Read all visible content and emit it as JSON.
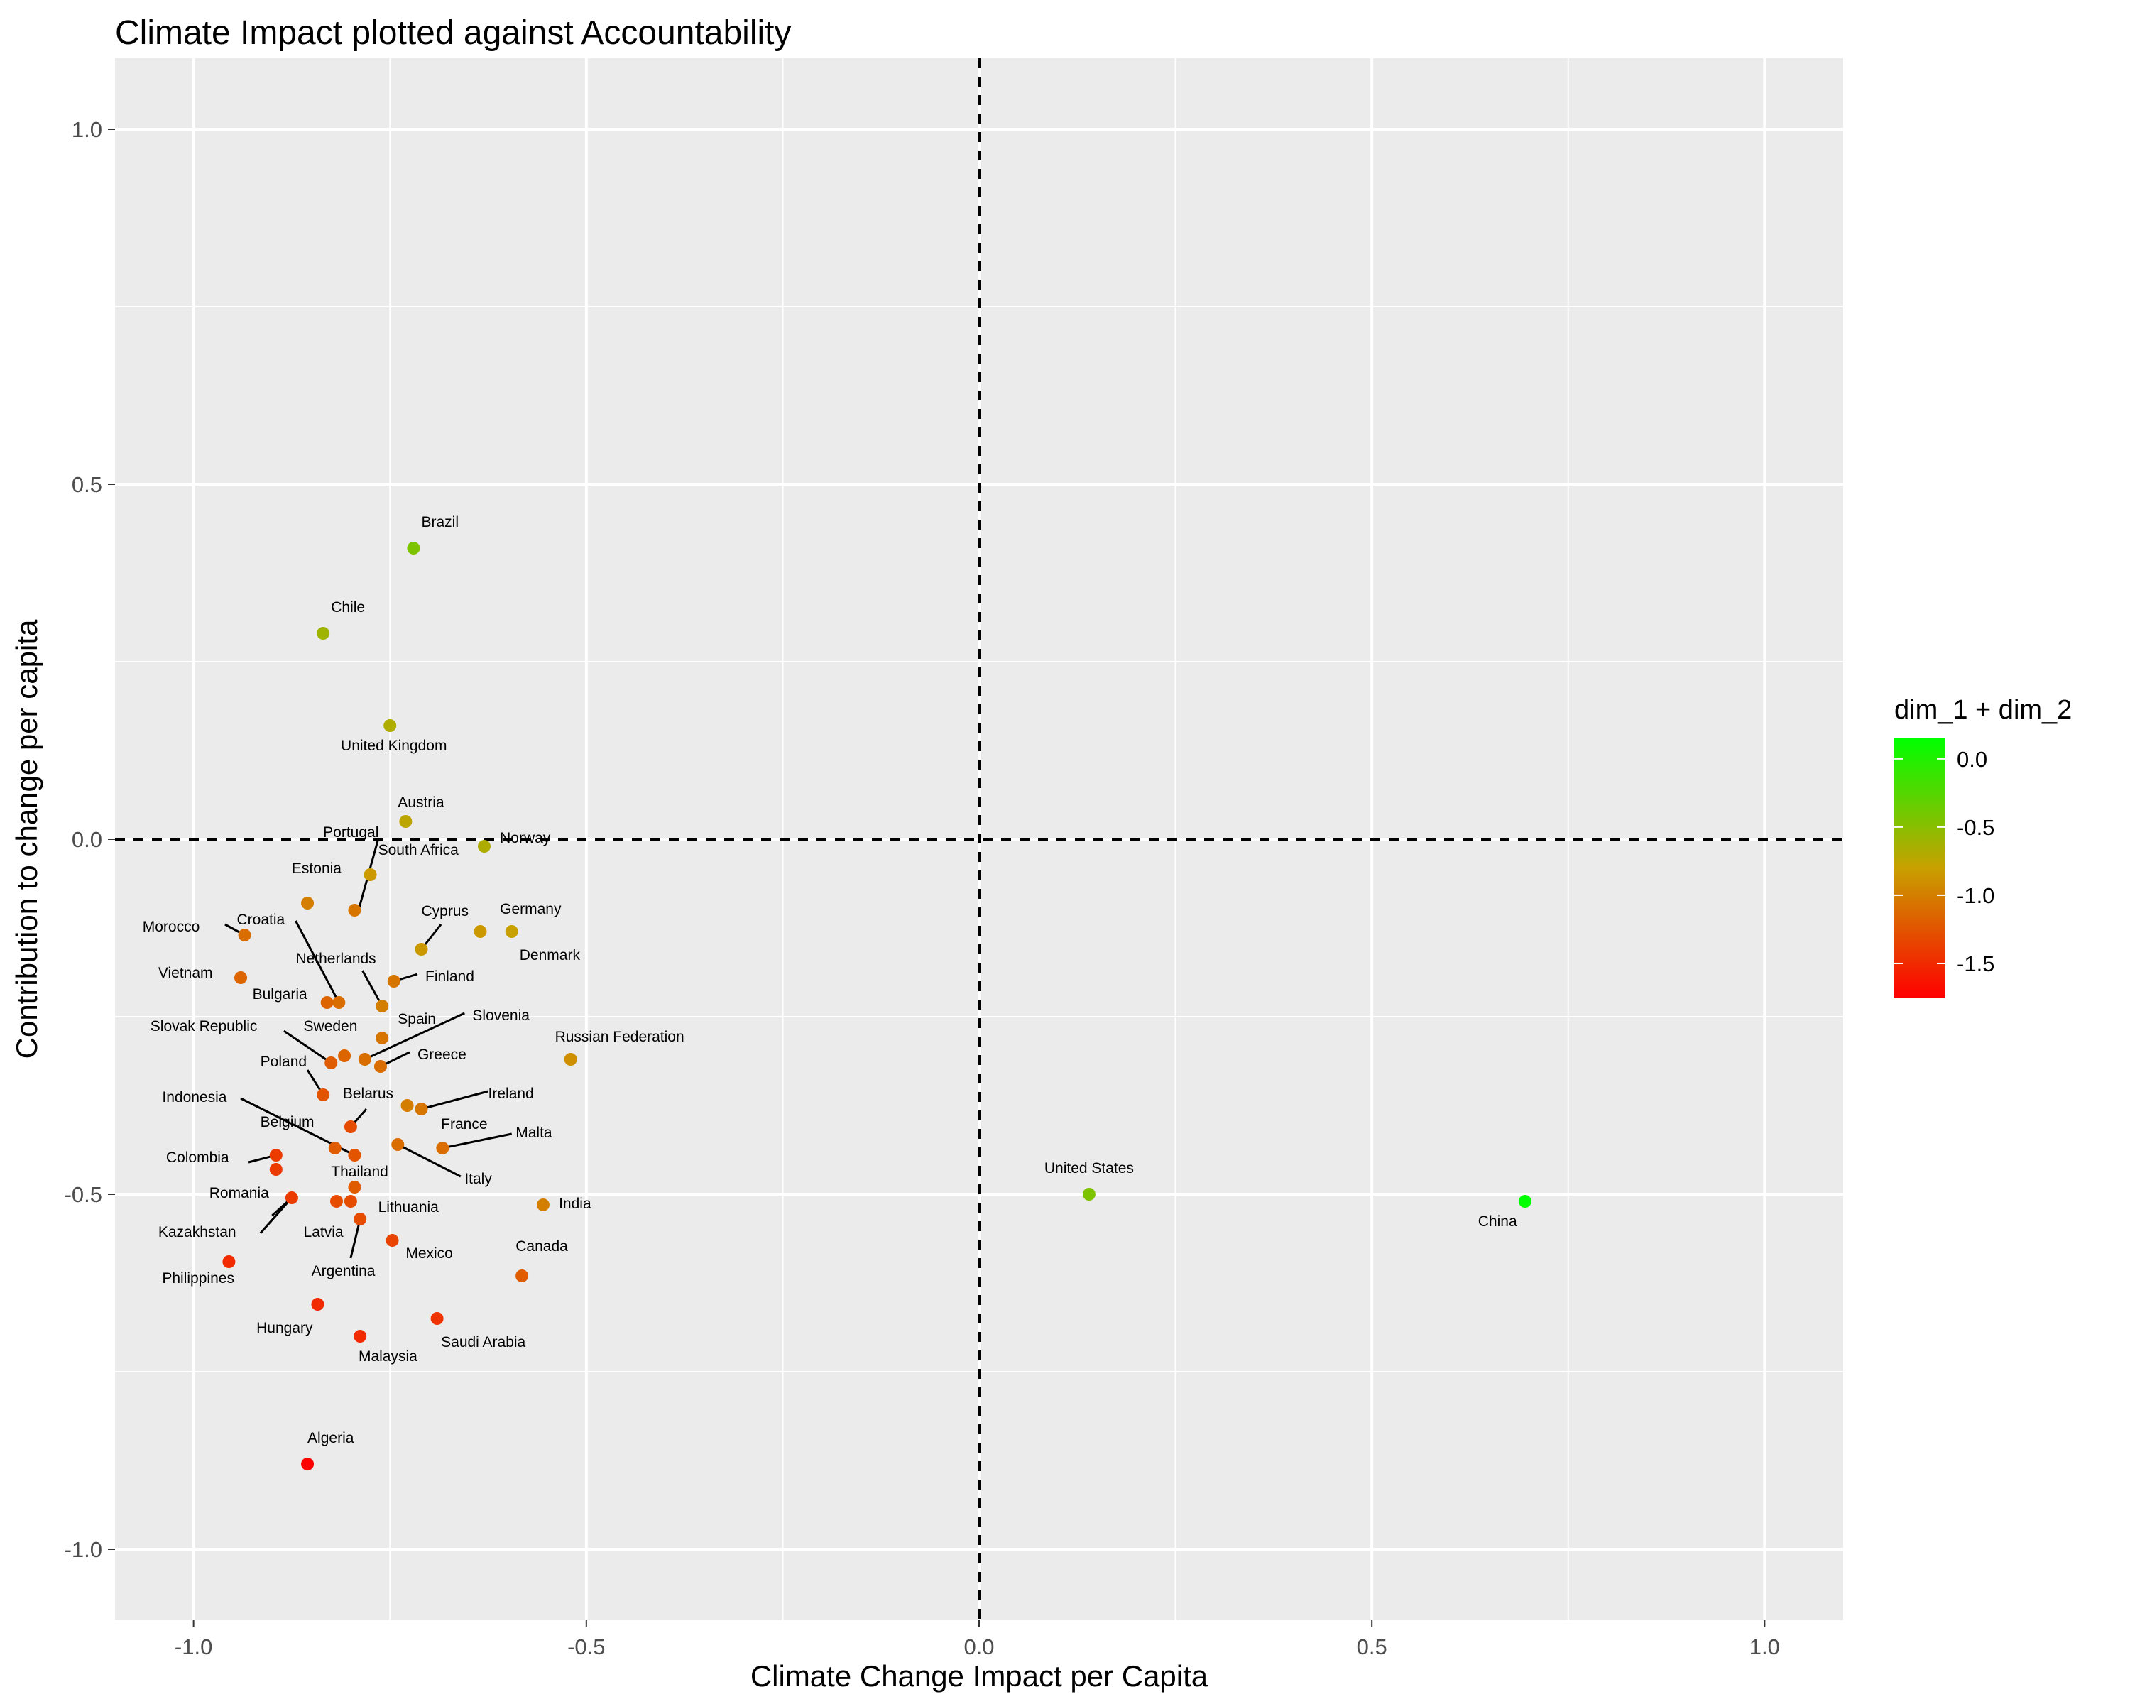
{
  "chart_data": {
    "type": "scatter",
    "title": "Climate Impact plotted against Accountability",
    "xlabel": "Climate Change Impact per Capita",
    "ylabel": "Contribution to change per capita",
    "xlim": [
      -1.1,
      1.1
    ],
    "ylim": [
      -1.1,
      1.1
    ],
    "x_ticks": [
      -1.0,
      -0.5,
      0.0,
      0.5,
      1.0
    ],
    "x_tick_labels": [
      "-1.0",
      "-0.5",
      "0.0",
      "0.5",
      "1.0"
    ],
    "y_ticks": [
      -1.0,
      -0.5,
      0.0,
      0.5,
      1.0
    ],
    "y_tick_labels": [
      "-1.0",
      "-0.5",
      "0.0",
      "0.5",
      "1.0"
    ],
    "grid": true,
    "reference_lines": {
      "x": 0,
      "y": 0,
      "style": "dashed"
    },
    "legend": {
      "title": "dim_1 + dim_2",
      "placement": "right",
      "type": "colorbar",
      "range": [
        -1.75,
        0.15
      ],
      "ticks": [
        0.0,
        -0.5,
        -1.0,
        -1.5
      ],
      "tick_labels": [
        "0.0",
        "-0.5",
        "-1.0",
        "-1.5"
      ],
      "low_color": "#ff0000",
      "high_color": "#00ff00"
    },
    "points": [
      {
        "label": "Brazil",
        "x": -0.72,
        "y": 0.41,
        "c": -0.45
      },
      {
        "label": "Chile",
        "x": -0.835,
        "y": 0.29,
        "c": -0.6
      },
      {
        "label": "United Kingdom",
        "x": -0.75,
        "y": 0.16,
        "c": -0.68
      },
      {
        "label": "Austria",
        "x": -0.73,
        "y": 0.025,
        "c": -0.75
      },
      {
        "label": "Norway",
        "x": -0.63,
        "y": -0.01,
        "c": -0.68
      },
      {
        "label": "South Africa",
        "x": -0.775,
        "y": -0.05,
        "c": -0.85
      },
      {
        "label": "Portugal",
        "x": -0.795,
        "y": -0.1,
        "c": -1.05
      },
      {
        "label": "Estonia",
        "x": -0.855,
        "y": -0.09,
        "c": -1.0
      },
      {
        "label": "Morocco",
        "x": -0.935,
        "y": -0.135,
        "c": -1.1
      },
      {
        "label": "Germany",
        "x": -0.635,
        "y": -0.13,
        "c": -0.85
      },
      {
        "label": "Denmark",
        "x": -0.595,
        "y": -0.13,
        "c": -0.8
      },
      {
        "label": "Cyprus",
        "x": -0.71,
        "y": -0.155,
        "c": -0.85
      },
      {
        "label": "Finland",
        "x": -0.745,
        "y": -0.2,
        "c": -1.05
      },
      {
        "label": "Vietnam",
        "x": -0.94,
        "y": -0.195,
        "c": -1.15
      },
      {
        "label": "Croatia",
        "x": -0.815,
        "y": -0.23,
        "c": -1.1
      },
      {
        "label": "Bulgaria",
        "x": -0.83,
        "y": -0.23,
        "c": -1.15
      },
      {
        "label": "Netherlands",
        "x": -0.76,
        "y": -0.235,
        "c": -1.0
      },
      {
        "label": "Spain",
        "x": -0.76,
        "y": -0.28,
        "c": -1.05
      },
      {
        "label": "Sweden",
        "x": -0.808,
        "y": -0.305,
        "c": -1.15
      },
      {
        "label": "Slovenia",
        "x": -0.782,
        "y": -0.31,
        "c": -1.1
      },
      {
        "label": "Greece",
        "x": -0.762,
        "y": -0.32,
        "c": -1.1
      },
      {
        "label": "Slovak Republic",
        "x": -0.825,
        "y": -0.315,
        "c": -1.2
      },
      {
        "label": "Russian Federation",
        "x": -0.52,
        "y": -0.31,
        "c": -0.9
      },
      {
        "label": "Poland",
        "x": -0.835,
        "y": -0.36,
        "c": -1.25
      },
      {
        "label": "Ireland",
        "x": -0.71,
        "y": -0.38,
        "c": -1.05
      },
      {
        "label": "Belarus",
        "x": -0.728,
        "y": -0.375,
        "c": -1.0
      },
      {
        "label": "Indonesia",
        "x": -0.8,
        "y": -0.405,
        "c": -1.3
      },
      {
        "label": "France",
        "x": -0.74,
        "y": -0.43,
        "c": -1.1
      },
      {
        "label": "Malta",
        "x": -0.683,
        "y": -0.435,
        "c": -1.1
      },
      {
        "label": "Belgium",
        "x": -0.82,
        "y": -0.435,
        "c": -1.2
      },
      {
        "label": "Italy",
        "x": -0.795,
        "y": -0.445,
        "c": -1.25
      },
      {
        "label": "Colombia",
        "x": -0.895,
        "y": -0.445,
        "c": -1.4
      },
      {
        "label": "Colombia-2",
        "x": -0.895,
        "y": -0.465,
        "c": -1.4
      },
      {
        "label": "Thailand",
        "x": -0.795,
        "y": -0.49,
        "c": -1.2
      },
      {
        "label": "Romania",
        "x": -0.875,
        "y": -0.505,
        "c": -1.4
      },
      {
        "label": "Latvia",
        "x": -0.818,
        "y": -0.51,
        "c": -1.3
      },
      {
        "label": "Lithuania",
        "x": -0.8,
        "y": -0.51,
        "c": -1.3
      },
      {
        "label": "India",
        "x": -0.555,
        "y": -0.515,
        "c": -1.0
      },
      {
        "label": "Argentina",
        "x": -0.788,
        "y": -0.535,
        "c": -1.3
      },
      {
        "label": "Mexico",
        "x": -0.747,
        "y": -0.565,
        "c": -1.35
      },
      {
        "label": "Kazakhstan-pt",
        "x": -0.955,
        "y": -0.595,
        "c": -1.5
      },
      {
        "label": "Canada",
        "x": -0.582,
        "y": -0.615,
        "c": -1.2
      },
      {
        "label": "Hungary",
        "x": -0.842,
        "y": -0.655,
        "c": -1.5
      },
      {
        "label": "Saudi Arabia",
        "x": -0.69,
        "y": -0.675,
        "c": -1.45
      },
      {
        "label": "Malaysia",
        "x": -0.788,
        "y": -0.7,
        "c": -1.5
      },
      {
        "label": "Algeria",
        "x": -0.855,
        "y": -0.88,
        "c": -1.75
      },
      {
        "label": "United States",
        "x": 0.14,
        "y": -0.5,
        "c": -0.45
      },
      {
        "label": "China",
        "x": 0.695,
        "y": -0.51,
        "c": 0.15
      }
    ],
    "text_labels": [
      {
        "text": "Brazil",
        "x": -0.71,
        "y": 0.44,
        "anchor": "start"
      },
      {
        "text": "Chile",
        "x": -0.825,
        "y": 0.32,
        "anchor": "start"
      },
      {
        "text": "United Kingdom",
        "x": -0.745,
        "y": 0.125,
        "anchor": "middle"
      },
      {
        "text": "Austria",
        "x": -0.74,
        "y": 0.045,
        "anchor": "start"
      },
      {
        "text": "Norway",
        "x": -0.61,
        "y": -0.005,
        "anchor": "start"
      },
      {
        "text": "Portugal",
        "x": -0.835,
        "y": 0.003,
        "anchor": "start"
      },
      {
        "text": "South Africa",
        "x": -0.765,
        "y": -0.022,
        "anchor": "start"
      },
      {
        "text": "Estonia",
        "x": -0.875,
        "y": -0.048,
        "anchor": "start"
      },
      {
        "text": "Morocco",
        "x": -1.065,
        "y": -0.13,
        "anchor": "start"
      },
      {
        "text": "Croatia",
        "x": -0.945,
        "y": -0.12,
        "anchor": "start"
      },
      {
        "text": "Cyprus",
        "x": -0.71,
        "y": -0.108,
        "anchor": "start"
      },
      {
        "text": "Germany",
        "x": -0.61,
        "y": -0.105,
        "anchor": "start"
      },
      {
        "text": "Denmark",
        "x": -0.585,
        "y": -0.17,
        "anchor": "start"
      },
      {
        "text": "Netherlands",
        "x": -0.87,
        "y": -0.175,
        "anchor": "start"
      },
      {
        "text": "Finland",
        "x": -0.705,
        "y": -0.2,
        "anchor": "start"
      },
      {
        "text": "Vietnam",
        "x": -1.045,
        "y": -0.195,
        "anchor": "start"
      },
      {
        "text": "Bulgaria",
        "x": -0.925,
        "y": -0.225,
        "anchor": "start"
      },
      {
        "text": "Slovenia",
        "x": -0.645,
        "y": -0.255,
        "anchor": "start"
      },
      {
        "text": "Spain",
        "x": -0.74,
        "y": -0.26,
        "anchor": "start"
      },
      {
        "text": "Slovak Republic",
        "x": -1.055,
        "y": -0.27,
        "anchor": "start"
      },
      {
        "text": "Sweden",
        "x": -0.86,
        "y": -0.27,
        "anchor": "start"
      },
      {
        "text": "Russian Federation",
        "x": -0.54,
        "y": -0.285,
        "anchor": "start"
      },
      {
        "text": "Greece",
        "x": -0.715,
        "y": -0.31,
        "anchor": "start"
      },
      {
        "text": "Poland",
        "x": -0.915,
        "y": -0.32,
        "anchor": "start"
      },
      {
        "text": "Belarus",
        "x": -0.81,
        "y": -0.365,
        "anchor": "start"
      },
      {
        "text": "Ireland",
        "x": -0.625,
        "y": -0.365,
        "anchor": "start"
      },
      {
        "text": "Indonesia",
        "x": -1.04,
        "y": -0.37,
        "anchor": "start"
      },
      {
        "text": "Belgium",
        "x": -0.915,
        "y": -0.405,
        "anchor": "start"
      },
      {
        "text": "France",
        "x": -0.685,
        "y": -0.408,
        "anchor": "start"
      },
      {
        "text": "Malta",
        "x": -0.59,
        "y": -0.42,
        "anchor": "start"
      },
      {
        "text": "Colombia",
        "x": -1.035,
        "y": -0.455,
        "anchor": "start"
      },
      {
        "text": "Thailand",
        "x": -0.825,
        "y": -0.475,
        "anchor": "start"
      },
      {
        "text": "Italy",
        "x": -0.655,
        "y": -0.485,
        "anchor": "start"
      },
      {
        "text": "Romania",
        "x": -0.98,
        "y": -0.505,
        "anchor": "start"
      },
      {
        "text": "India",
        "x": -0.535,
        "y": -0.52,
        "anchor": "start"
      },
      {
        "text": "Lithuania",
        "x": -0.765,
        "y": -0.525,
        "anchor": "start"
      },
      {
        "text": "Kazakhstan",
        "x": -1.045,
        "y": -0.56,
        "anchor": "start"
      },
      {
        "text": "Latvia",
        "x": -0.86,
        "y": -0.56,
        "anchor": "start"
      },
      {
        "text": "Mexico",
        "x": -0.73,
        "y": -0.59,
        "anchor": "start"
      },
      {
        "text": "Canada",
        "x": -0.59,
        "y": -0.58,
        "anchor": "start"
      },
      {
        "text": "Argentina",
        "x": -0.85,
        "y": -0.615,
        "anchor": "start"
      },
      {
        "text": "Philippines",
        "x": -1.04,
        "y": -0.625,
        "anchor": "start"
      },
      {
        "text": "Hungary",
        "x": -0.92,
        "y": -0.695,
        "anchor": "start"
      },
      {
        "text": "Saudi Arabia",
        "x": -0.685,
        "y": -0.715,
        "anchor": "start"
      },
      {
        "text": "Malaysia",
        "x": -0.79,
        "y": -0.735,
        "anchor": "start"
      },
      {
        "text": "Algeria",
        "x": -0.855,
        "y": -0.85,
        "anchor": "start"
      },
      {
        "text": "United States",
        "x": 0.14,
        "y": -0.47,
        "anchor": "middle"
      },
      {
        "text": "China",
        "x": 0.66,
        "y": -0.545,
        "anchor": "middle"
      }
    ],
    "leader_lines": [
      [
        -0.79,
        -0.1,
        -0.765,
        0.0
      ],
      [
        -0.935,
        -0.135,
        -0.96,
        -0.12
      ],
      [
        -0.815,
        -0.23,
        -0.87,
        -0.115
      ],
      [
        -0.71,
        -0.155,
        -0.685,
        -0.12
      ],
      [
        -0.745,
        -0.2,
        -0.715,
        -0.19
      ],
      [
        -0.76,
        -0.235,
        -0.785,
        -0.185
      ],
      [
        -0.782,
        -0.31,
        -0.655,
        -0.245
      ],
      [
        -0.762,
        -0.32,
        -0.725,
        -0.3
      ],
      [
        -0.825,
        -0.315,
        -0.885,
        -0.27
      ],
      [
        -0.835,
        -0.36,
        -0.855,
        -0.325
      ],
      [
        -0.71,
        -0.38,
        -0.625,
        -0.355
      ],
      [
        -0.8,
        -0.405,
        -0.78,
        -0.38
      ],
      [
        -0.795,
        -0.445,
        -0.94,
        -0.365
      ],
      [
        -0.683,
        -0.435,
        -0.595,
        -0.415
      ],
      [
        -0.74,
        -0.43,
        -0.66,
        -0.475
      ],
      [
        -0.895,
        -0.445,
        -0.93,
        -0.455
      ],
      [
        -0.875,
        -0.505,
        -0.9,
        -0.53
      ],
      [
        -0.788,
        -0.535,
        -0.8,
        -0.59
      ],
      [
        -0.875,
        -0.505,
        -0.915,
        -0.555
      ]
    ]
  }
}
